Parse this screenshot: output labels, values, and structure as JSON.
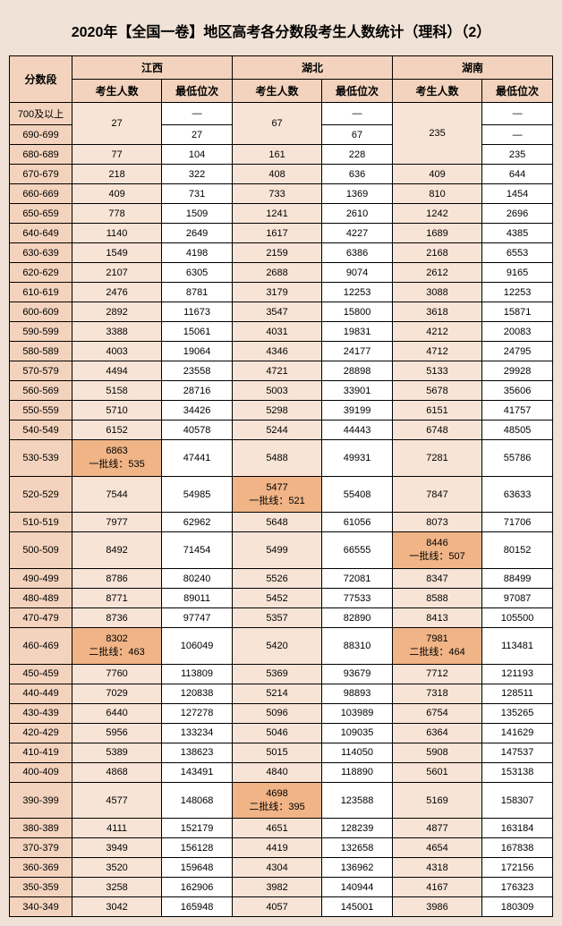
{
  "title": "2020年【全国一卷】地区高考各分数段考生人数统计（理科）（2）",
  "range_header": "分数段",
  "provinces": [
    "江西",
    "湖北",
    "湖南"
  ],
  "subheaders": {
    "count": "考生人数",
    "rank": "最低位次"
  },
  "dash": "—",
  "colors": {
    "page_bg": "#f0e2d6",
    "header_bg": "#f3d3bd",
    "tinted_bg": "#f8e4d6",
    "highlight_bg": "#f0b486",
    "border": "#000000",
    "text": "#000000"
  },
  "merged_rows": {
    "ranges": [
      "700及以上",
      "690-699"
    ],
    "jx_count": "27",
    "jx_rank1": "—",
    "jx_rank2": "27",
    "hb_count": "67",
    "hb_rank1": "—",
    "hb_rank2": "67",
    "hn_count": "235",
    "hn_rank1": "—",
    "hn_rank2": "—"
  },
  "hn_680_689": {
    "range": "680-689",
    "jx_c": "77",
    "jx_r": "104",
    "hb_c": "161",
    "hb_r": "228",
    "hn_r": "235"
  },
  "rows": [
    {
      "range": "670-679",
      "jx_c": "218",
      "jx_r": "322",
      "hb_c": "408",
      "hb_r": "636",
      "hn_c": "409",
      "hn_r": "644"
    },
    {
      "range": "660-669",
      "jx_c": "409",
      "jx_r": "731",
      "hb_c": "733",
      "hb_r": "1369",
      "hn_c": "810",
      "hn_r": "1454"
    },
    {
      "range": "650-659",
      "jx_c": "778",
      "jx_r": "1509",
      "hb_c": "1241",
      "hb_r": "2610",
      "hn_c": "1242",
      "hn_r": "2696"
    },
    {
      "range": "640-649",
      "jx_c": "1140",
      "jx_r": "2649",
      "hb_c": "1617",
      "hb_r": "4227",
      "hn_c": "1689",
      "hn_r": "4385"
    },
    {
      "range": "630-639",
      "jx_c": "1549",
      "jx_r": "4198",
      "hb_c": "2159",
      "hb_r": "6386",
      "hn_c": "2168",
      "hn_r": "6553"
    },
    {
      "range": "620-629",
      "jx_c": "2107",
      "jx_r": "6305",
      "hb_c": "2688",
      "hb_r": "9074",
      "hn_c": "2612",
      "hn_r": "9165"
    },
    {
      "range": "610-619",
      "jx_c": "2476",
      "jx_r": "8781",
      "hb_c": "3179",
      "hb_r": "12253",
      "hn_c": "3088",
      "hn_r": "12253"
    },
    {
      "range": "600-609",
      "jx_c": "2892",
      "jx_r": "11673",
      "hb_c": "3547",
      "hb_r": "15800",
      "hn_c": "3618",
      "hn_r": "15871"
    },
    {
      "range": "590-599",
      "jx_c": "3388",
      "jx_r": "15061",
      "hb_c": "4031",
      "hb_r": "19831",
      "hn_c": "4212",
      "hn_r": "20083"
    },
    {
      "range": "580-589",
      "jx_c": "4003",
      "jx_r": "19064",
      "hb_c": "4346",
      "hb_r": "24177",
      "hn_c": "4712",
      "hn_r": "24795"
    },
    {
      "range": "570-579",
      "jx_c": "4494",
      "jx_r": "23558",
      "hb_c": "4721",
      "hb_r": "28898",
      "hn_c": "5133",
      "hn_r": "29928"
    },
    {
      "range": "560-569",
      "jx_c": "5158",
      "jx_r": "28716",
      "hb_c": "5003",
      "hb_r": "33901",
      "hn_c": "5678",
      "hn_r": "35606"
    },
    {
      "range": "550-559",
      "jx_c": "5710",
      "jx_r": "34426",
      "hb_c": "5298",
      "hb_r": "39199",
      "hn_c": "6151",
      "hn_r": "41757"
    },
    {
      "range": "540-549",
      "jx_c": "6152",
      "jx_r": "40578",
      "hb_c": "5244",
      "hb_r": "44443",
      "hn_c": "6748",
      "hn_r": "48505"
    }
  ],
  "row_530": {
    "range": "530-539",
    "jx_c_l1": "6863",
    "jx_c_l2": "一批线：535",
    "jx_r": "47441",
    "hb_c": "5488",
    "hb_r": "49931",
    "hn_c": "7281",
    "hn_r": "55786"
  },
  "row_520": {
    "range": "520-529",
    "jx_c": "7544",
    "jx_r": "54985",
    "hb_c_l1": "5477",
    "hb_c_l2": "一批线：521",
    "hb_r": "55408",
    "hn_c": "7847",
    "hn_r": "63633"
  },
  "rows2": [
    {
      "range": "510-519",
      "jx_c": "7977",
      "jx_r": "62962",
      "hb_c": "5648",
      "hb_r": "61056",
      "hn_c": "8073",
      "hn_r": "71706"
    }
  ],
  "row_500": {
    "range": "500-509",
    "jx_c": "8492",
    "jx_r": "71454",
    "hb_c": "5499",
    "hb_r": "66555",
    "hn_c_l1": "8446",
    "hn_c_l2": "一批线：507",
    "hn_r": "80152"
  },
  "rows3": [
    {
      "range": "490-499",
      "jx_c": "8786",
      "jx_r": "80240",
      "hb_c": "5526",
      "hb_r": "72081",
      "hn_c": "8347",
      "hn_r": "88499"
    },
    {
      "range": "480-489",
      "jx_c": "8771",
      "jx_r": "89011",
      "hb_c": "5452",
      "hb_r": "77533",
      "hn_c": "8588",
      "hn_r": "97087"
    },
    {
      "range": "470-479",
      "jx_c": "8736",
      "jx_r": "97747",
      "hb_c": "5357",
      "hb_r": "82890",
      "hn_c": "8413",
      "hn_r": "105500"
    }
  ],
  "row_460": {
    "range": "460-469",
    "jx_c_l1": "8302",
    "jx_c_l2": "二批线：463",
    "jx_r": "106049",
    "hb_c": "5420",
    "hb_r": "88310",
    "hn_c_l1": "7981",
    "hn_c_l2": "二批线：464",
    "hn_r": "113481"
  },
  "rows4": [
    {
      "range": "450-459",
      "jx_c": "7760",
      "jx_r": "113809",
      "hb_c": "5369",
      "hb_r": "93679",
      "hn_c": "7712",
      "hn_r": "121193"
    },
    {
      "range": "440-449",
      "jx_c": "7029",
      "jx_r": "120838",
      "hb_c": "5214",
      "hb_r": "98893",
      "hn_c": "7318",
      "hn_r": "128511"
    },
    {
      "range": "430-439",
      "jx_c": "6440",
      "jx_r": "127278",
      "hb_c": "5096",
      "hb_r": "103989",
      "hn_c": "6754",
      "hn_r": "135265"
    },
    {
      "range": "420-429",
      "jx_c": "5956",
      "jx_r": "133234",
      "hb_c": "5046",
      "hb_r": "109035",
      "hn_c": "6364",
      "hn_r": "141629"
    },
    {
      "range": "410-419",
      "jx_c": "5389",
      "jx_r": "138623",
      "hb_c": "5015",
      "hb_r": "114050",
      "hn_c": "5908",
      "hn_r": "147537"
    },
    {
      "range": "400-409",
      "jx_c": "4868",
      "jx_r": "143491",
      "hb_c": "4840",
      "hb_r": "118890",
      "hn_c": "5601",
      "hn_r": "153138"
    }
  ],
  "row_390": {
    "range": "390-399",
    "jx_c": "4577",
    "jx_r": "148068",
    "hb_c_l1": "4698",
    "hb_c_l2": "二批线：395",
    "hb_r": "123588",
    "hn_c": "5169",
    "hn_r": "158307"
  },
  "rows5": [
    {
      "range": "380-389",
      "jx_c": "4111",
      "jx_r": "152179",
      "hb_c": "4651",
      "hb_r": "128239",
      "hn_c": "4877",
      "hn_r": "163184"
    },
    {
      "range": "370-379",
      "jx_c": "3949",
      "jx_r": "156128",
      "hb_c": "4419",
      "hb_r": "132658",
      "hn_c": "4654",
      "hn_r": "167838"
    },
    {
      "range": "360-369",
      "jx_c": "3520",
      "jx_r": "159648",
      "hb_c": "4304",
      "hb_r": "136962",
      "hn_c": "4318",
      "hn_r": "172156"
    },
    {
      "range": "350-359",
      "jx_c": "3258",
      "jx_r": "162906",
      "hb_c": "3982",
      "hb_r": "140944",
      "hn_c": "4167",
      "hn_r": "176323"
    },
    {
      "range": "340-349",
      "jx_c": "3042",
      "jx_r": "165948",
      "hb_c": "4057",
      "hb_r": "145001",
      "hn_c": "3986",
      "hn_r": "180309"
    }
  ]
}
